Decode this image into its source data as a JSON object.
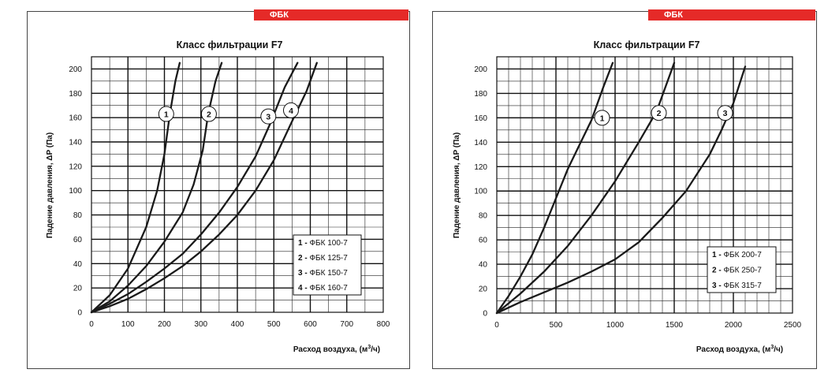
{
  "badge_label": "ФБК",
  "accent_color": "#e52a28",
  "chart_data": [
    {
      "type": "line",
      "title": "Класс фильтрации F7",
      "xlabel": "Расход воздуха, (м³/ч)",
      "ylabel": "Падение давления, ΔP (Па)",
      "xlim": [
        0,
        800
      ],
      "ylim": [
        0,
        210
      ],
      "xticks": [
        0,
        100,
        200,
        300,
        400,
        500,
        600,
        700,
        800
      ],
      "yticks": [
        0,
        20,
        40,
        60,
        80,
        100,
        120,
        140,
        160,
        180,
        200
      ],
      "x_minor_step": 50,
      "y_minor_step": 10,
      "grid": true,
      "legend_position": "bottom-right",
      "series": [
        {
          "name": "ФБК 100-7",
          "label": "1",
          "label_at": [
            205,
            163
          ],
          "points": [
            [
              0,
              0
            ],
            [
              50,
              14
            ],
            [
              100,
              36
            ],
            [
              150,
              70
            ],
            [
              180,
              100
            ],
            [
              200,
              130
            ],
            [
              215,
              163
            ],
            [
              230,
              190
            ],
            [
              242,
              205
            ]
          ]
        },
        {
          "name": "ФБК 125-7",
          "label": "2",
          "label_at": [
            322,
            163
          ],
          "points": [
            [
              0,
              0
            ],
            [
              50,
              9
            ],
            [
              100,
              22
            ],
            [
              150,
              38
            ],
            [
              200,
              58
            ],
            [
              250,
              82
            ],
            [
              280,
              105
            ],
            [
              305,
              133
            ],
            [
              320,
              163
            ],
            [
              340,
              190
            ],
            [
              357,
              205
            ]
          ]
        },
        {
          "name": "ФБК 150-7",
          "label": "3",
          "label_at": [
            485,
            161
          ],
          "points": [
            [
              0,
              0
            ],
            [
              50,
              7
            ],
            [
              100,
              15
            ],
            [
              150,
              25
            ],
            [
              200,
              36
            ],
            [
              250,
              48
            ],
            [
              300,
              64
            ],
            [
              350,
              82
            ],
            [
              400,
              103
            ],
            [
              450,
              128
            ],
            [
              490,
              155
            ],
            [
              530,
              185
            ],
            [
              565,
              205
            ]
          ]
        },
        {
          "name": "ФБК 160-7",
          "label": "4",
          "label_at": [
            547,
            166
          ],
          "points": [
            [
              0,
              0
            ],
            [
              50,
              5
            ],
            [
              100,
              11
            ],
            [
              150,
              19
            ],
            [
              200,
              28
            ],
            [
              250,
              38
            ],
            [
              300,
              50
            ],
            [
              350,
              64
            ],
            [
              400,
              80
            ],
            [
              450,
              100
            ],
            [
              500,
              125
            ],
            [
              550,
              157
            ],
            [
              590,
              182
            ],
            [
              618,
              205
            ]
          ]
        }
      ]
    },
    {
      "type": "line",
      "title": "Класс фильтрации F7",
      "xlabel": "Расход воздуха, (м³/ч)",
      "ylabel": "Падение давления, ΔP (Па)",
      "xlim": [
        0,
        2500
      ],
      "ylim": [
        0,
        210
      ],
      "xticks": [
        0,
        500,
        1000,
        1500,
        2000,
        2500
      ],
      "yticks": [
        0,
        20,
        40,
        60,
        80,
        100,
        120,
        140,
        160,
        180,
        200
      ],
      "x_minor_step": 100,
      "y_minor_step": 10,
      "grid": true,
      "legend_position": "bottom-right",
      "series": [
        {
          "name": "ФБК 200-7",
          "label": "1",
          "label_at": [
            890,
            160
          ],
          "points": [
            [
              0,
              0
            ],
            [
              100,
              14
            ],
            [
              200,
              30
            ],
            [
              300,
              48
            ],
            [
              400,
              70
            ],
            [
              500,
              94
            ],
            [
              600,
              118
            ],
            [
              700,
              138
            ],
            [
              800,
              158
            ],
            [
              900,
              185
            ],
            [
              980,
              205
            ]
          ]
        },
        {
          "name": "ФБК 250-7",
          "label": "2",
          "label_at": [
            1370,
            164
          ],
          "points": [
            [
              0,
              0
            ],
            [
              200,
              16
            ],
            [
              400,
              34
            ],
            [
              600,
              55
            ],
            [
              800,
              80
            ],
            [
              1000,
              108
            ],
            [
              1200,
              140
            ],
            [
              1350,
              165
            ],
            [
              1500,
              205
            ]
          ]
        },
        {
          "name": "ФБК 315-7",
          "label": "3",
          "label_at": [
            1930,
            164
          ],
          "points": [
            [
              0,
              0
            ],
            [
              200,
              9
            ],
            [
              400,
              17
            ],
            [
              600,
              25
            ],
            [
              800,
              34
            ],
            [
              1000,
              44
            ],
            [
              1200,
              58
            ],
            [
              1400,
              78
            ],
            [
              1600,
              100
            ],
            [
              1800,
              130
            ],
            [
              1900,
              150
            ],
            [
              2000,
              172
            ],
            [
              2100,
              202
            ]
          ]
        }
      ]
    }
  ]
}
